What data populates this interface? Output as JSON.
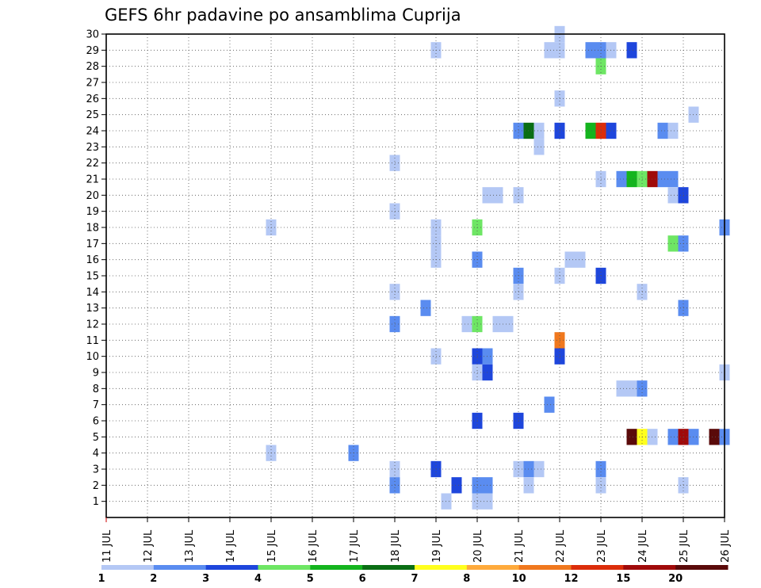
{
  "chart_data": {
    "type": "heatmap",
    "title": "GEFS 6hr padavine po ansamblima Cuprija",
    "xlabel": "",
    "ylabel": "",
    "x_tick_labels": [
      "11 JUL",
      "12 JUL",
      "13 JUL",
      "14 JUL",
      "15 JUL",
      "16 JUL",
      "17 JUL",
      "18 JUL",
      "19 JUL",
      "20 JUL",
      "21 JUL",
      "22 JUL",
      "23 JUL",
      "24 JUL",
      "25 JUL",
      "26 JUL"
    ],
    "xlim": [
      11,
      26
    ],
    "y_tick_labels": [
      "1",
      "2",
      "3",
      "4",
      "5",
      "6",
      "7",
      "8",
      "9",
      "10",
      "11",
      "12",
      "13",
      "14",
      "15",
      "16",
      "17",
      "18",
      "19",
      "20",
      "21",
      "22",
      "23",
      "24",
      "25",
      "26",
      "27",
      "28",
      "29",
      "30"
    ],
    "ylim": [
      0,
      30
    ],
    "grid": true,
    "legend": {
      "position": "bottom",
      "colors": [
        "#b4c8f5",
        "#5a8cf0",
        "#1e46dc",
        "#6ee664",
        "#14b41e",
        "#0a6e14",
        "#ffff1e",
        "#ffaa3c",
        "#f0781e",
        "#dc2d0a",
        "#a00a0a",
        "#5a0a0a"
      ],
      "tick_labels": [
        "1",
        "2",
        "3",
        "4",
        "5",
        "6",
        "7",
        "8",
        "10",
        "12",
        "15",
        "20"
      ]
    },
    "cells": [
      {
        "x": 22.0,
        "y": 30,
        "v": 1
      },
      {
        "x": 19.0,
        "y": 29,
        "v": 1
      },
      {
        "x": 21.75,
        "y": 29,
        "v": 1
      },
      {
        "x": 22.0,
        "y": 29,
        "v": 1
      },
      {
        "x": 22.75,
        "y": 29,
        "v": 2
      },
      {
        "x": 23.0,
        "y": 29,
        "v": 2
      },
      {
        "x": 23.25,
        "y": 29,
        "v": 1
      },
      {
        "x": 23.75,
        "y": 29,
        "v": 3
      },
      {
        "x": 23.0,
        "y": 28,
        "v": 4
      },
      {
        "x": 22.0,
        "y": 26,
        "v": 1
      },
      {
        "x": 25.25,
        "y": 25,
        "v": 1
      },
      {
        "x": 21.0,
        "y": 24,
        "v": 2
      },
      {
        "x": 21.25,
        "y": 24,
        "v": 6
      },
      {
        "x": 21.5,
        "y": 24,
        "v": 1
      },
      {
        "x": 22.0,
        "y": 24,
        "v": 3
      },
      {
        "x": 22.75,
        "y": 24,
        "v": 5
      },
      {
        "x": 23.0,
        "y": 24,
        "v": 12
      },
      {
        "x": 23.25,
        "y": 24,
        "v": 3
      },
      {
        "x": 24.5,
        "y": 24,
        "v": 2
      },
      {
        "x": 24.75,
        "y": 24,
        "v": 1
      },
      {
        "x": 21.5,
        "y": 23,
        "v": 1
      },
      {
        "x": 18.0,
        "y": 22,
        "v": 1
      },
      {
        "x": 23.0,
        "y": 21,
        "v": 1
      },
      {
        "x": 23.5,
        "y": 21,
        "v": 2
      },
      {
        "x": 23.75,
        "y": 21,
        "v": 5
      },
      {
        "x": 24.0,
        "y": 21,
        "v": 4
      },
      {
        "x": 24.25,
        "y": 21,
        "v": 15
      },
      {
        "x": 24.5,
        "y": 21,
        "v": 2
      },
      {
        "x": 24.75,
        "y": 21,
        "v": 2
      },
      {
        "x": 20.25,
        "y": 20,
        "v": 1
      },
      {
        "x": 20.5,
        "y": 20,
        "v": 1
      },
      {
        "x": 21.0,
        "y": 20,
        "v": 1
      },
      {
        "x": 24.75,
        "y": 20,
        "v": 1
      },
      {
        "x": 25.0,
        "y": 20,
        "v": 3
      },
      {
        "x": 18.0,
        "y": 19,
        "v": 1
      },
      {
        "x": 15.0,
        "y": 18,
        "v": 1
      },
      {
        "x": 19.0,
        "y": 18,
        "v": 1
      },
      {
        "x": 20.0,
        "y": 18,
        "v": 4
      },
      {
        "x": 26.0,
        "y": 18,
        "v": 2
      },
      {
        "x": 19.0,
        "y": 17,
        "v": 1
      },
      {
        "x": 24.75,
        "y": 17,
        "v": 4
      },
      {
        "x": 25.0,
        "y": 17,
        "v": 2
      },
      {
        "x": 19.0,
        "y": 16,
        "v": 1
      },
      {
        "x": 20.0,
        "y": 16,
        "v": 2
      },
      {
        "x": 22.25,
        "y": 16,
        "v": 1
      },
      {
        "x": 22.5,
        "y": 16,
        "v": 1
      },
      {
        "x": 21.0,
        "y": 15,
        "v": 2
      },
      {
        "x": 22.0,
        "y": 15,
        "v": 1
      },
      {
        "x": 23.0,
        "y": 15,
        "v": 3
      },
      {
        "x": 18.0,
        "y": 14,
        "v": 1
      },
      {
        "x": 21.0,
        "y": 14,
        "v": 1
      },
      {
        "x": 24.0,
        "y": 14,
        "v": 1
      },
      {
        "x": 18.75,
        "y": 13,
        "v": 2
      },
      {
        "x": 25.0,
        "y": 13,
        "v": 2
      },
      {
        "x": 18.0,
        "y": 12,
        "v": 2
      },
      {
        "x": 19.75,
        "y": 12,
        "v": 1
      },
      {
        "x": 20.0,
        "y": 12,
        "v": 4
      },
      {
        "x": 20.5,
        "y": 12,
        "v": 1
      },
      {
        "x": 20.75,
        "y": 12,
        "v": 1
      },
      {
        "x": 22.0,
        "y": 11,
        "v": 10
      },
      {
        "x": 19.0,
        "y": 10,
        "v": 1
      },
      {
        "x": 20.0,
        "y": 10,
        "v": 3
      },
      {
        "x": 20.25,
        "y": 10,
        "v": 2
      },
      {
        "x": 22.0,
        "y": 10,
        "v": 3
      },
      {
        "x": 20.0,
        "y": 9,
        "v": 1
      },
      {
        "x": 20.25,
        "y": 9,
        "v": 3
      },
      {
        "x": 26.0,
        "y": 9,
        "v": 1
      },
      {
        "x": 23.5,
        "y": 8,
        "v": 1
      },
      {
        "x": 23.75,
        "y": 8,
        "v": 1
      },
      {
        "x": 24.0,
        "y": 8,
        "v": 2
      },
      {
        "x": 21.75,
        "y": 7,
        "v": 2
      },
      {
        "x": 20.0,
        "y": 6,
        "v": 3
      },
      {
        "x": 21.0,
        "y": 6,
        "v": 3
      },
      {
        "x": 23.75,
        "y": 5,
        "v": 20
      },
      {
        "x": 24.0,
        "y": 5,
        "v": 7
      },
      {
        "x": 24.25,
        "y": 5,
        "v": 1
      },
      {
        "x": 24.75,
        "y": 5,
        "v": 2
      },
      {
        "x": 25.0,
        "y": 5,
        "v": 15
      },
      {
        "x": 25.25,
        "y": 5,
        "v": 2
      },
      {
        "x": 25.75,
        "y": 5,
        "v": 20
      },
      {
        "x": 26.0,
        "y": 5,
        "v": 2
      },
      {
        "x": 15.0,
        "y": 4,
        "v": 1
      },
      {
        "x": 17.0,
        "y": 4,
        "v": 2
      },
      {
        "x": 18.0,
        "y": 3,
        "v": 1
      },
      {
        "x": 19.0,
        "y": 3,
        "v": 3
      },
      {
        "x": 21.0,
        "y": 3,
        "v": 1
      },
      {
        "x": 21.25,
        "y": 3,
        "v": 2
      },
      {
        "x": 21.5,
        "y": 3,
        "v": 1
      },
      {
        "x": 23.0,
        "y": 3,
        "v": 2
      },
      {
        "x": 18.0,
        "y": 2,
        "v": 2
      },
      {
        "x": 19.5,
        "y": 2,
        "v": 3
      },
      {
        "x": 20.0,
        "y": 2,
        "v": 2
      },
      {
        "x": 20.25,
        "y": 2,
        "v": 2
      },
      {
        "x": 21.25,
        "y": 2,
        "v": 1
      },
      {
        "x": 23.0,
        "y": 2,
        "v": 1
      },
      {
        "x": 25.0,
        "y": 2,
        "v": 1
      },
      {
        "x": 19.25,
        "y": 1,
        "v": 1
      },
      {
        "x": 20.0,
        "y": 1,
        "v": 1
      },
      {
        "x": 20.25,
        "y": 1,
        "v": 1
      }
    ]
  }
}
